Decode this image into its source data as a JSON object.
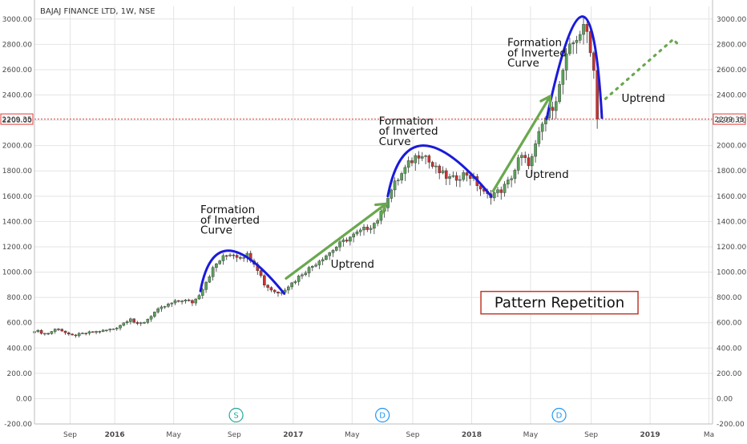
{
  "chart_data": {
    "type": "candlestick",
    "title": "BAJAJ FINANCE LTD, 1W, NSE",
    "ylim": [
      -200,
      3100
    ],
    "y_ticks": [
      -200,
      0,
      200,
      400,
      600,
      800,
      1000,
      1200,
      1400,
      1600,
      1800,
      2000,
      2200,
      2400,
      2600,
      2800,
      3000
    ],
    "y_tick_labels": [
      "-200.00",
      "0.00",
      "200.00",
      "400.00",
      "600.00",
      "800.00",
      "1000.00",
      "1200.00",
      "1400.00",
      "1600.00",
      "1800.00",
      "2000.00",
      "2200.00",
      "2400.00",
      "2600.00",
      "2800.00",
      "3000.00"
    ],
    "x_range": [
      2015.55,
      2019.35
    ],
    "x_ticks": [
      {
        "label": "Sep",
        "t": 2015.75
      },
      {
        "label": "2016",
        "t": 2016.0
      },
      {
        "label": "May",
        "t": 2016.33
      },
      {
        "label": "Sep",
        "t": 2016.67
      },
      {
        "label": "2017",
        "t": 2017.0
      },
      {
        "label": "May",
        "t": 2017.33
      },
      {
        "label": "Sep",
        "t": 2017.67
      },
      {
        "label": "2018",
        "t": 2018.0
      },
      {
        "label": "May",
        "t": 2018.33
      },
      {
        "label": "Sep",
        "t": 2018.67
      },
      {
        "label": "2019",
        "t": 2019.0
      },
      {
        "label": "Ma",
        "t": 2019.33
      }
    ],
    "last_price": 2209.35,
    "last_price_label": "2209.35",
    "price_path": [
      [
        2015.55,
        540
      ],
      [
        2015.62,
        510
      ],
      [
        2015.68,
        560
      ],
      [
        2015.75,
        495
      ],
      [
        2015.85,
        520
      ],
      [
        2015.95,
        540
      ],
      [
        2016.0,
        555
      ],
      [
        2016.05,
        600
      ],
      [
        2016.09,
        640
      ],
      [
        2016.12,
        580
      ],
      [
        2016.17,
        610
      ],
      [
        2016.22,
        680
      ],
      [
        2016.28,
        730
      ],
      [
        2016.33,
        760
      ],
      [
        2016.38,
        780
      ],
      [
        2016.44,
        760
      ],
      [
        2016.48,
        840
      ],
      [
        2016.52,
        950
      ],
      [
        2016.56,
        1050
      ],
      [
        2016.6,
        1110
      ],
      [
        2016.65,
        1150
      ],
      [
        2016.7,
        1120
      ],
      [
        2016.74,
        1140
      ],
      [
        2016.78,
        1080
      ],
      [
        2016.81,
        1000
      ],
      [
        2016.84,
        900
      ],
      [
        2016.88,
        860
      ],
      [
        2016.92,
        830
      ],
      [
        2016.96,
        880
      ],
      [
        2017.0,
        920
      ],
      [
        2017.05,
        990
      ],
      [
        2017.1,
        1040
      ],
      [
        2017.15,
        1100
      ],
      [
        2017.2,
        1150
      ],
      [
        2017.25,
        1210
      ],
      [
        2017.3,
        1260
      ],
      [
        2017.35,
        1300
      ],
      [
        2017.4,
        1340
      ],
      [
        2017.45,
        1380
      ],
      [
        2017.49,
        1450
      ],
      [
        2017.53,
        1600
      ],
      [
        2017.57,
        1700
      ],
      [
        2017.61,
        1780
      ],
      [
        2017.65,
        1860
      ],
      [
        2017.69,
        1920
      ],
      [
        2017.73,
        1950
      ],
      [
        2017.77,
        1850
      ],
      [
        2017.81,
        1800
      ],
      [
        2017.85,
        1760
      ],
      [
        2017.89,
        1730
      ],
      [
        2017.93,
        1760
      ],
      [
        2017.97,
        1780
      ],
      [
        2018.0,
        1750
      ],
      [
        2018.04,
        1680
      ],
      [
        2018.08,
        1600
      ],
      [
        2018.12,
        1620
      ],
      [
        2018.16,
        1640
      ],
      [
        2018.2,
        1700
      ],
      [
        2018.24,
        1800
      ],
      [
        2018.27,
        1920
      ],
      [
        2018.3,
        1880
      ],
      [
        2018.33,
        1860
      ],
      [
        2018.37,
        2050
      ],
      [
        2018.4,
        2180
      ],
      [
        2018.43,
        2260
      ],
      [
        2018.46,
        2330
      ],
      [
        2018.49,
        2450
      ],
      [
        2018.52,
        2650
      ],
      [
        2018.55,
        2760
      ],
      [
        2018.58,
        2840
      ],
      [
        2018.61,
        2900
      ],
      [
        2018.64,
        2930
      ],
      [
        2018.66,
        2820
      ],
      [
        2018.68,
        2650
      ],
      [
        2018.7,
        2400
      ],
      [
        2018.72,
        2209
      ]
    ],
    "annotations": [
      {
        "text": "Formation",
        "type": "label",
        "t": 2016.48,
        "y": 1465
      },
      {
        "text": "of Inverted",
        "type": "label",
        "t": 2016.48,
        "y": 1385
      },
      {
        "text": "Curve",
        "type": "label",
        "t": 2016.48,
        "y": 1305
      },
      {
        "text": "Formation",
        "type": "label",
        "t": 2017.48,
        "y": 2165
      },
      {
        "text": "of Inverted",
        "type": "label",
        "t": 2017.48,
        "y": 2085
      },
      {
        "text": "Curve",
        "type": "label",
        "t": 2017.48,
        "y": 2005
      },
      {
        "text": "Formation",
        "type": "label",
        "t": 2018.2,
        "y": 2785
      },
      {
        "text": "of Inverted",
        "type": "label",
        "t": 2018.2,
        "y": 2705
      },
      {
        "text": "Curve",
        "type": "label",
        "t": 2018.2,
        "y": 2625
      },
      {
        "text": "Uptrend",
        "type": "label",
        "t": 2017.21,
        "y": 1035
      },
      {
        "text": "Uptrend",
        "type": "label",
        "t": 2018.3,
        "y": 1745
      },
      {
        "text": "Uptrend",
        "type": "label",
        "t": 2018.84,
        "y": 2345
      },
      {
        "text": "Pattern Repetition",
        "type": "boxed",
        "t": 2018.07,
        "y": 765
      }
    ],
    "curves": [
      {
        "type": "arc",
        "color": "#1a1adb",
        "points": [
          [
            2016.48,
            850
          ],
          [
            2016.64,
            1170
          ],
          [
            2016.95,
            830
          ]
        ]
      },
      {
        "type": "arc",
        "color": "#1a1adb",
        "points": [
          [
            2017.53,
            1600
          ],
          [
            2017.73,
            2000
          ],
          [
            2018.11,
            1600
          ]
        ]
      },
      {
        "type": "arc",
        "color": "#1a1adb",
        "points": [
          [
            2018.42,
            2210
          ],
          [
            2018.62,
            3020
          ],
          [
            2018.73,
            2220
          ]
        ]
      }
    ],
    "arrows": [
      {
        "color": "#6aa84f",
        "from": [
          2016.96,
          950
        ],
        "to": [
          2017.52,
          1540
        ]
      },
      {
        "color": "#6aa84f",
        "from": [
          2018.12,
          1640
        ],
        "to": [
          2018.44,
          2390
        ]
      }
    ],
    "dotted_projection": {
      "color": "#6aa84f",
      "points": [
        [
          2018.75,
          2370
        ],
        [
          2019.13,
          2840
        ],
        [
          2019.17,
          2780
        ]
      ]
    },
    "events": [
      {
        "label": "S",
        "t": 2016.68,
        "color": "#26a69a"
      },
      {
        "label": "D",
        "t": 2017.5,
        "color": "#2196f3"
      },
      {
        "label": "D",
        "t": 2018.49,
        "color": "#2196f3"
      }
    ],
    "colors": {
      "up": "#5aa05a",
      "down": "#c83232",
      "last_price_line": "#e53935",
      "grid": "#e4e4e4"
    }
  }
}
